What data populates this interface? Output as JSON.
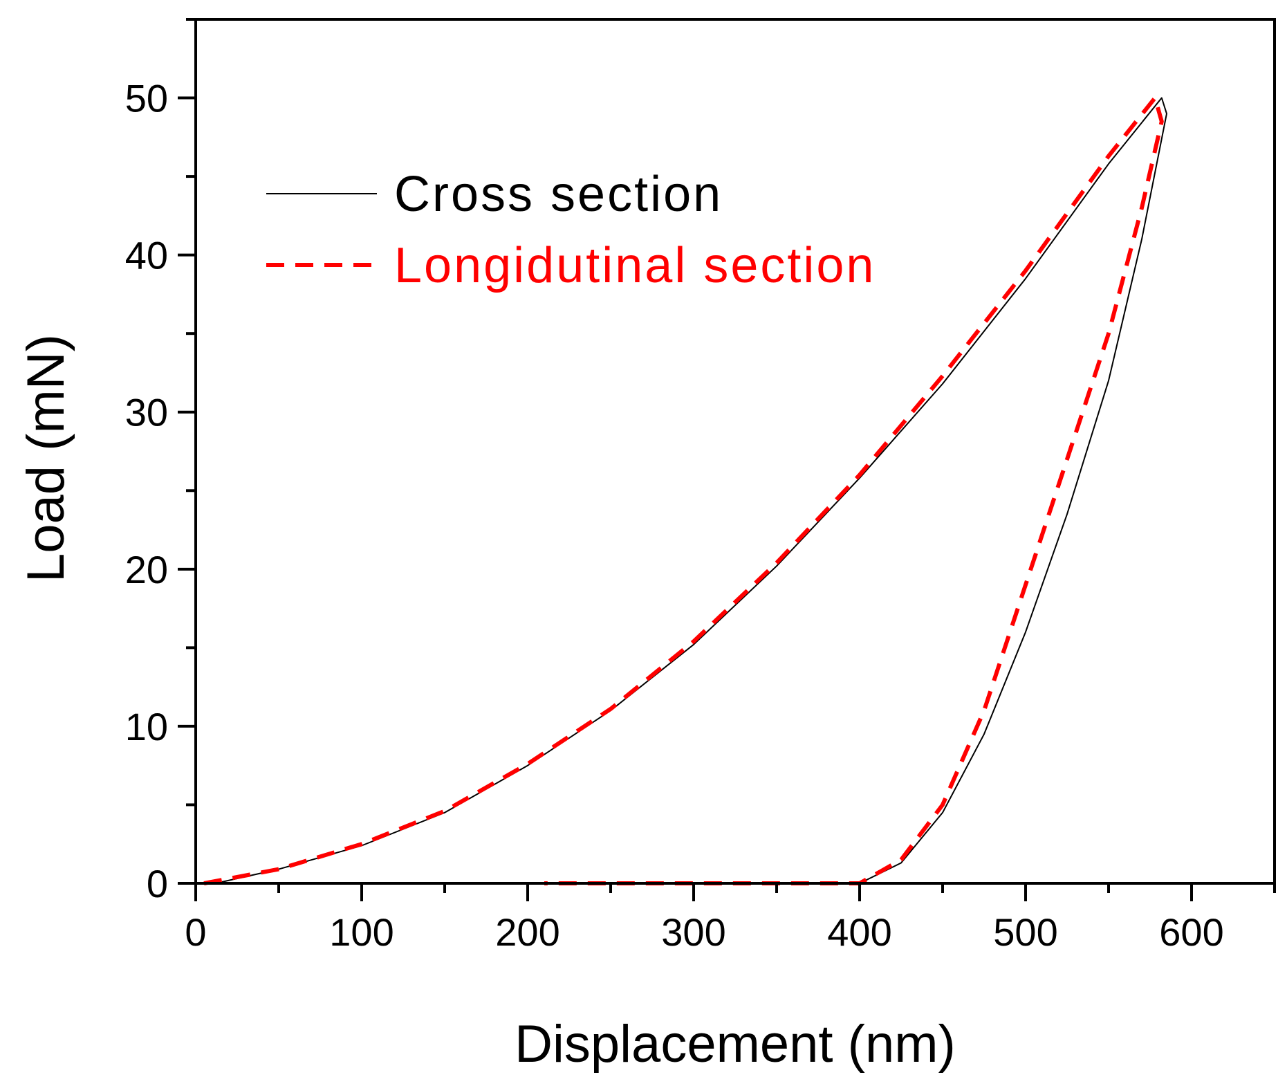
{
  "chart_data": {
    "type": "line",
    "xlabel": "Displacement (nm)",
    "ylabel": "Load (mN)",
    "xlim": [
      0,
      650
    ],
    "ylim": [
      0,
      55
    ],
    "x_ticks": [
      0,
      100,
      200,
      300,
      400,
      500,
      600
    ],
    "y_ticks": [
      0,
      10,
      20,
      30,
      40,
      50
    ],
    "grid": false,
    "legend_position": "top-left",
    "series": [
      {
        "name": "Cross section",
        "color": "#000000",
        "style": "solid",
        "points": [
          [
            12,
            0
          ],
          [
            50,
            0.9
          ],
          [
            100,
            2.4
          ],
          [
            150,
            4.5
          ],
          [
            200,
            7.5
          ],
          [
            250,
            11.0
          ],
          [
            300,
            15.2
          ],
          [
            350,
            20.2
          ],
          [
            400,
            25.8
          ],
          [
            450,
            31.8
          ],
          [
            500,
            38.5
          ],
          [
            550,
            45.8
          ],
          [
            582,
            50.0
          ],
          [
            585,
            49.0
          ],
          [
            570,
            41.0
          ],
          [
            550,
            32.0
          ],
          [
            525,
            23.5
          ],
          [
            500,
            16.0
          ],
          [
            475,
            9.5
          ],
          [
            450,
            4.5
          ],
          [
            425,
            1.3
          ],
          [
            400,
            0
          ]
        ]
      },
      {
        "name": "Longidutinal section",
        "color": "#ff0000",
        "style": "dashed",
        "points": [
          [
            5,
            0
          ],
          [
            50,
            0.9
          ],
          [
            100,
            2.5
          ],
          [
            150,
            4.6
          ],
          [
            200,
            7.6
          ],
          [
            250,
            11.1
          ],
          [
            300,
            15.4
          ],
          [
            350,
            20.4
          ],
          [
            400,
            26.0
          ],
          [
            450,
            32.3
          ],
          [
            500,
            39.0
          ],
          [
            550,
            46.3
          ],
          [
            578,
            50.0
          ],
          [
            582,
            48.5
          ],
          [
            570,
            43.0
          ],
          [
            550,
            35.0
          ],
          [
            525,
            27.0
          ],
          [
            500,
            19.0
          ],
          [
            475,
            11.0
          ],
          [
            450,
            5.0
          ],
          [
            425,
            1.5
          ],
          [
            400,
            0
          ],
          [
            210,
            0
          ]
        ]
      }
    ]
  }
}
